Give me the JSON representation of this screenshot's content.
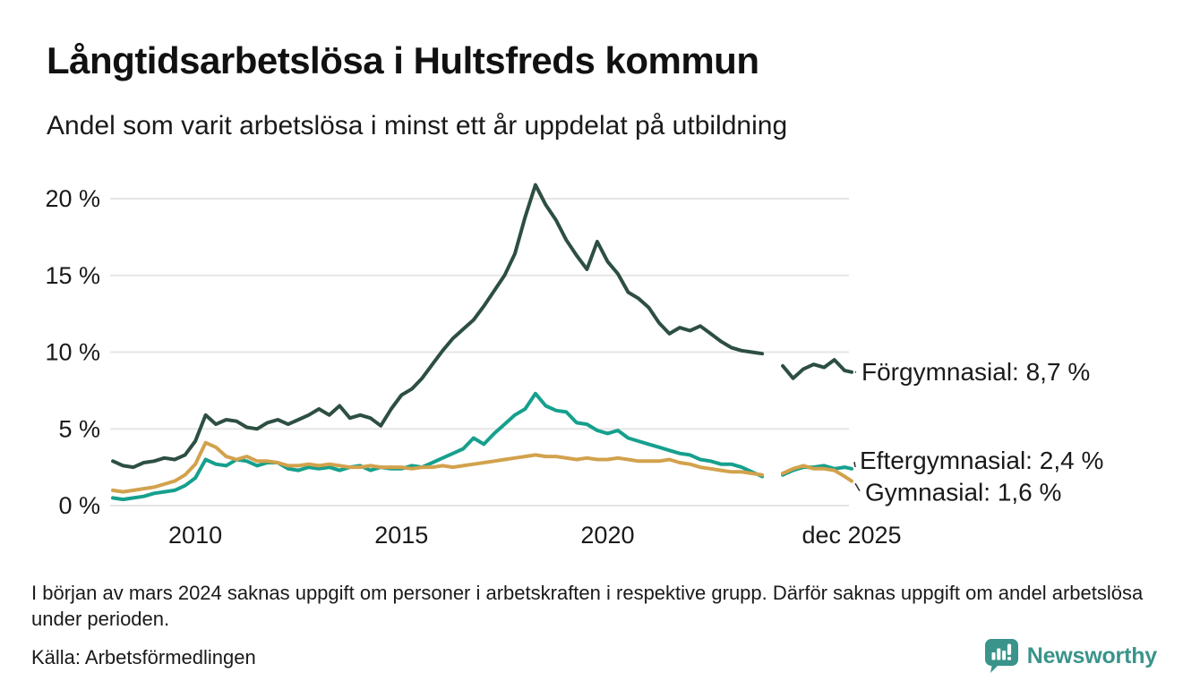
{
  "header": {
    "title": "Långtidsarbetslösa i Hultsfreds kommun",
    "subtitle": "Andel som varit arbetslösa i minst ett år uppdelat på utbildning"
  },
  "footnote": "I början av mars 2024 saknas uppgift om personer i arbetskraften i respektive grupp. Därför saknas uppgift om andel arbetslösa under perioden.",
  "source": "Källa: Arbetsförmedlingen",
  "branding": {
    "name": "Newsworthy",
    "color": "#3a948b"
  },
  "colors": {
    "text": "#1a1a1a",
    "gridline": "#e5e5e3",
    "connector": "#333333"
  },
  "chart_data": {
    "type": "line",
    "title": "Långtidsarbetslösa i Hultsfreds kommun",
    "subtitle": "Andel som varit arbetslösa i minst ett år uppdelat på utbildning",
    "xlabel": "",
    "ylabel": "",
    "ylim": [
      0,
      21
    ],
    "grid": "horizontal",
    "legend_position": "end-of-line-labels",
    "gap_period": "early 2024 (data missing)",
    "yticks": [
      {
        "value": 0,
        "label": "0 %"
      },
      {
        "value": 5,
        "label": "5 %"
      },
      {
        "value": 10,
        "label": "10 %"
      },
      {
        "value": 15,
        "label": "15 %"
      },
      {
        "value": 20,
        "label": "20 %"
      }
    ],
    "xticks": [
      {
        "value": 2010,
        "label": "2010"
      },
      {
        "value": 2015,
        "label": "2015"
      },
      {
        "value": 2020,
        "label": "2020"
      },
      {
        "value": 2025.92,
        "label": "dec 2025"
      }
    ],
    "x": [
      2008,
      2008.25,
      2008.5,
      2008.75,
      2009,
      2009.25,
      2009.5,
      2009.75,
      2010,
      2010.25,
      2010.5,
      2010.75,
      2011,
      2011.25,
      2011.5,
      2011.75,
      2012,
      2012.25,
      2012.5,
      2012.75,
      2013,
      2013.25,
      2013.5,
      2013.75,
      2014,
      2014.25,
      2014.5,
      2014.75,
      2015,
      2015.25,
      2015.5,
      2015.75,
      2016,
      2016.25,
      2016.5,
      2016.75,
      2017,
      2017.25,
      2017.5,
      2017.75,
      2018,
      2018.25,
      2018.5,
      2018.75,
      2019,
      2019.25,
      2019.5,
      2019.75,
      2020,
      2020.25,
      2020.5,
      2020.75,
      2021,
      2021.25,
      2021.5,
      2021.75,
      2022,
      2022.25,
      2022.5,
      2022.75,
      2023,
      2023.25,
      2023.5,
      2023.75,
      2024,
      2024.25,
      2024.5,
      2024.75,
      2025,
      2025.25,
      2025.5,
      2025.75,
      2025.92
    ],
    "series": [
      {
        "name": "Förgymnasial",
        "end_label": "Förgymnasial: 8,7 %",
        "end_value_text": "8,7 %",
        "color": "#2d4f42",
        "values": [
          2.9,
          2.6,
          2.5,
          2.8,
          2.9,
          3.1,
          3.0,
          3.3,
          4.2,
          5.9,
          5.3,
          5.6,
          5.5,
          5.1,
          5.0,
          5.4,
          5.6,
          5.3,
          5.6,
          5.9,
          6.3,
          5.9,
          6.5,
          5.7,
          5.9,
          5.7,
          5.2,
          6.3,
          7.2,
          7.6,
          8.3,
          9.2,
          10.1,
          10.9,
          11.5,
          12.1,
          13.0,
          14.0,
          15.0,
          16.4,
          18.8,
          20.9,
          19.6,
          18.6,
          17.3,
          16.3,
          15.4,
          17.2,
          15.9,
          15.1,
          13.9,
          13.5,
          12.9,
          11.9,
          11.2,
          11.6,
          11.4,
          11.7,
          11.2,
          10.7,
          10.3,
          10.1,
          10.0,
          9.9,
          null,
          9.1,
          8.3,
          8.9,
          9.2,
          9.0,
          9.5,
          8.8,
          8.7
        ]
      },
      {
        "name": "Eftergymnasial",
        "end_label": "Eftergymnasial: 2,4 %",
        "end_value_text": "2,4 %",
        "color": "#16a08d",
        "values": [
          0.5,
          0.4,
          0.5,
          0.6,
          0.8,
          0.9,
          1.0,
          1.3,
          1.8,
          3.0,
          2.7,
          2.6,
          3.0,
          2.9,
          2.6,
          2.8,
          2.8,
          2.4,
          2.3,
          2.5,
          2.4,
          2.5,
          2.3,
          2.5,
          2.6,
          2.3,
          2.5,
          2.4,
          2.4,
          2.6,
          2.5,
          2.8,
          3.1,
          3.4,
          3.7,
          4.4,
          4.0,
          4.7,
          5.3,
          5.9,
          6.3,
          7.3,
          6.5,
          6.2,
          6.1,
          5.4,
          5.3,
          4.9,
          4.7,
          4.9,
          4.4,
          4.2,
          4.0,
          3.8,
          3.6,
          3.4,
          3.3,
          3.0,
          2.9,
          2.7,
          2.7,
          2.5,
          2.2,
          1.9,
          null,
          2.0,
          2.3,
          2.5,
          2.5,
          2.6,
          2.4,
          2.5,
          2.4
        ]
      },
      {
        "name": "Gymnasial",
        "end_label": "Gymnasial: 1,6 %",
        "end_value_text": "1,6 %",
        "color": "#d2a24c",
        "values": [
          1.0,
          0.9,
          1.0,
          1.1,
          1.2,
          1.4,
          1.6,
          2.0,
          2.7,
          4.1,
          3.8,
          3.2,
          3.0,
          3.2,
          2.9,
          2.9,
          2.8,
          2.6,
          2.6,
          2.7,
          2.6,
          2.7,
          2.6,
          2.5,
          2.5,
          2.6,
          2.5,
          2.5,
          2.5,
          2.4,
          2.5,
          2.5,
          2.6,
          2.5,
          2.6,
          2.7,
          2.8,
          2.9,
          3.0,
          3.1,
          3.2,
          3.3,
          3.2,
          3.2,
          3.1,
          3.0,
          3.1,
          3.0,
          3.0,
          3.1,
          3.0,
          2.9,
          2.9,
          2.9,
          3.0,
          2.8,
          2.7,
          2.5,
          2.4,
          2.3,
          2.2,
          2.2,
          2.1,
          2.0,
          null,
          2.1,
          2.4,
          2.6,
          2.4,
          2.4,
          2.3,
          1.9,
          1.6
        ]
      }
    ]
  }
}
